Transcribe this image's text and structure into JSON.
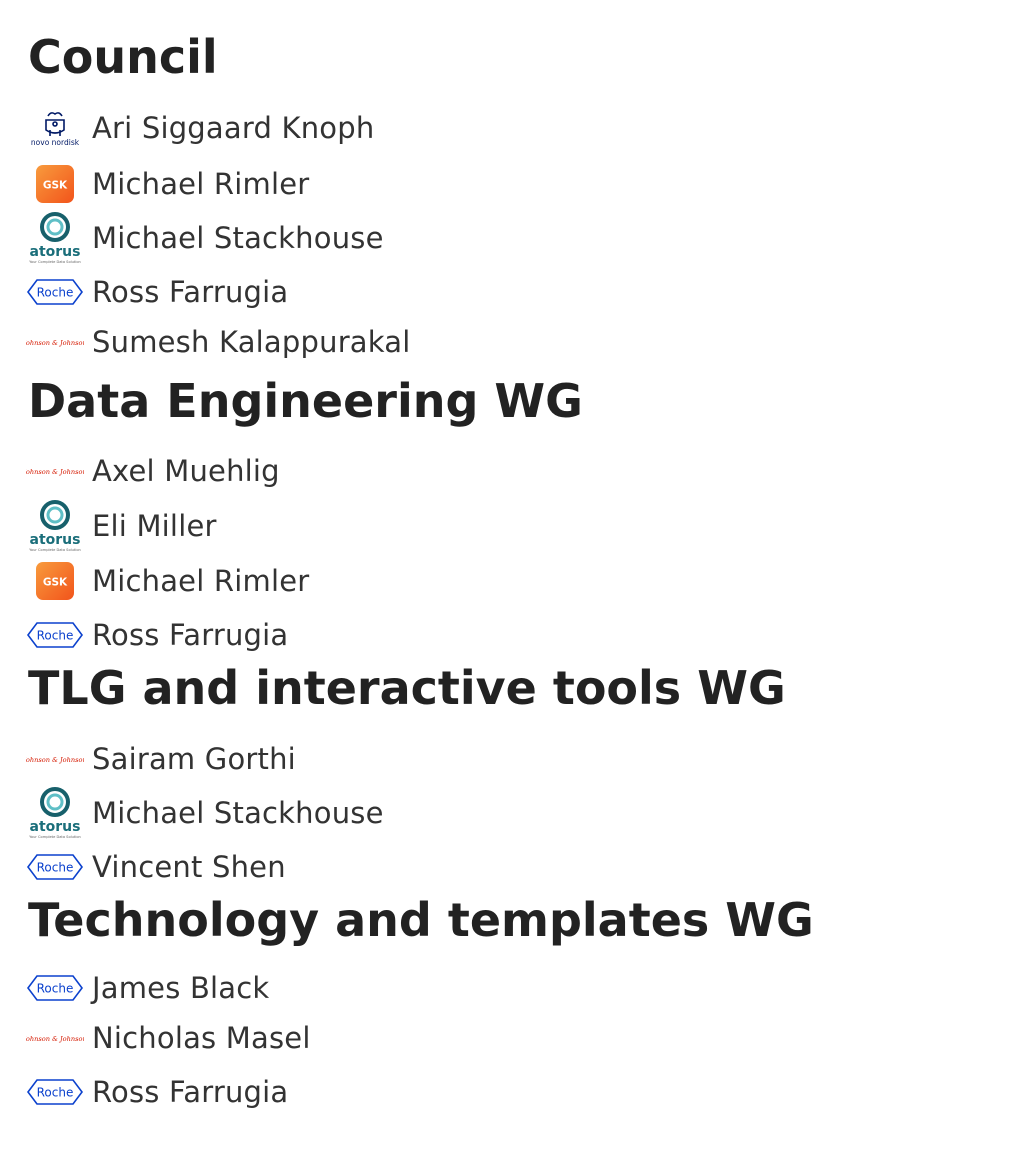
{
  "sections": [
    {
      "heading": "Council",
      "members": [
        {
          "name": "Ari Siggaard Knoph",
          "logo": "novo-nordisk-logo"
        },
        {
          "name": "Michael Rimler",
          "logo": "gsk-logo"
        },
        {
          "name": "Michael Stackhouse",
          "logo": "atorus-logo"
        },
        {
          "name": "Ross Farrugia",
          "logo": "roche-logo"
        },
        {
          "name": "Sumesh Kalappurakal",
          "logo": "johnson-johnson-logo"
        }
      ]
    },
    {
      "heading": "Data Engineering WG",
      "members": [
        {
          "name": "Axel Muehlig",
          "logo": "johnson-johnson-logo"
        },
        {
          "name": "Eli Miller",
          "logo": "atorus-logo"
        },
        {
          "name": "Michael Rimler",
          "logo": "gsk-logo"
        },
        {
          "name": "Ross Farrugia",
          "logo": "roche-logo"
        }
      ]
    },
    {
      "heading": "TLG and interactive tools WG",
      "members": [
        {
          "name": "Sairam Gorthi",
          "logo": "johnson-johnson-logo"
        },
        {
          "name": "Michael Stackhouse",
          "logo": "atorus-logo"
        },
        {
          "name": "Vincent Shen",
          "logo": "roche-logo"
        }
      ]
    },
    {
      "heading": "Technology and templates WG",
      "members": [
        {
          "name": "James Black",
          "logo": "roche-logo"
        },
        {
          "name": "Nicholas Masel",
          "logo": "johnson-johnson-logo"
        },
        {
          "name": "Ross Farrugia",
          "logo": "roche-logo"
        }
      ]
    }
  ],
  "logo_text": {
    "novo": "novo nordisk",
    "gsk": "GSK",
    "atorus": "atorus",
    "atorus_tagline": "Your Complete Data Solution",
    "roche": "Roche",
    "jnj": "Johnson & Johnson"
  },
  "colors": {
    "heading": "#222222",
    "name": "#333333",
    "roche_blue": "#0b41cd",
    "gsk_orange": "#f36633",
    "atorus_teal": "#1a6e7a",
    "jnj_red": "#d51900",
    "novo_blue": "#001965"
  }
}
